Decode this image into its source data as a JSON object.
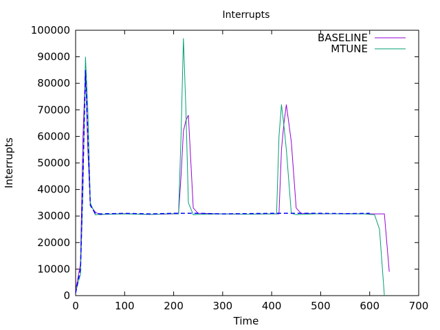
{
  "chart_data": {
    "type": "line",
    "title": "Interrupts",
    "xlabel": "Time",
    "ylabel": "Interrupts",
    "xlim": [
      0,
      700
    ],
    "ylim": [
      0,
      100000
    ],
    "xticks": [
      0,
      100,
      200,
      300,
      400,
      500,
      600,
      700
    ],
    "yticks": [
      0,
      10000,
      20000,
      30000,
      40000,
      50000,
      60000,
      70000,
      80000,
      90000,
      100000
    ],
    "grid": false,
    "legend_position": "top-right",
    "series": [
      {
        "name": "BASELINE",
        "color": "#9400d3",
        "dashed": false,
        "x": [
          0,
          5,
          10,
          15,
          20,
          25,
          30,
          40,
          50,
          60,
          100,
          150,
          200,
          210,
          215,
          220,
          225,
          230,
          240,
          250,
          300,
          350,
          400,
          410,
          415,
          420,
          425,
          430,
          440,
          450,
          460,
          500,
          550,
          600,
          620,
          630,
          640
        ],
        "y": [
          2000,
          7000,
          12000,
          60000,
          85000,
          55000,
          34000,
          31500,
          30500,
          30700,
          30900,
          30600,
          30800,
          30800,
          45000,
          62000,
          66000,
          68000,
          33000,
          31000,
          30800,
          30700,
          30800,
          30800,
          30800,
          55000,
          65000,
          72000,
          58000,
          33000,
          31000,
          30800,
          30900,
          30800,
          30800,
          30800,
          9000
        ]
      },
      {
        "name": "MTUNE",
        "color": "#009e73",
        "dashed": false,
        "x": [
          0,
          5,
          10,
          15,
          20,
          25,
          30,
          40,
          50,
          100,
          150,
          200,
          210,
          215,
          220,
          225,
          230,
          240,
          250,
          300,
          350,
          400,
          410,
          415,
          420,
          425,
          430,
          440,
          450,
          460,
          500,
          550,
          590,
          600,
          610,
          620,
          630
        ],
        "y": [
          1000,
          5000,
          8000,
          40000,
          90000,
          70000,
          35000,
          30500,
          30600,
          30800,
          30600,
          30900,
          30800,
          60000,
          97000,
          70000,
          35000,
          30500,
          30600,
          30800,
          30700,
          30800,
          30800,
          60000,
          72000,
          64000,
          55000,
          31000,
          30500,
          30600,
          30900,
          30800,
          30800,
          30600,
          30500,
          25000,
          0
        ]
      },
      {
        "name": "",
        "color": "#0000ff",
        "dashed": true,
        "x": [
          0,
          10,
          15,
          20,
          25,
          30,
          40,
          50,
          100,
          150,
          200,
          210,
          250,
          300,
          350,
          400,
          410,
          450,
          500,
          550,
          600
        ],
        "y": [
          1000,
          10000,
          45000,
          85000,
          60000,
          34000,
          31000,
          30800,
          31000,
          30800,
          31000,
          31000,
          31000,
          30800,
          30900,
          31000,
          31000,
          31000,
          31000,
          30900,
          31000
        ]
      }
    ]
  }
}
